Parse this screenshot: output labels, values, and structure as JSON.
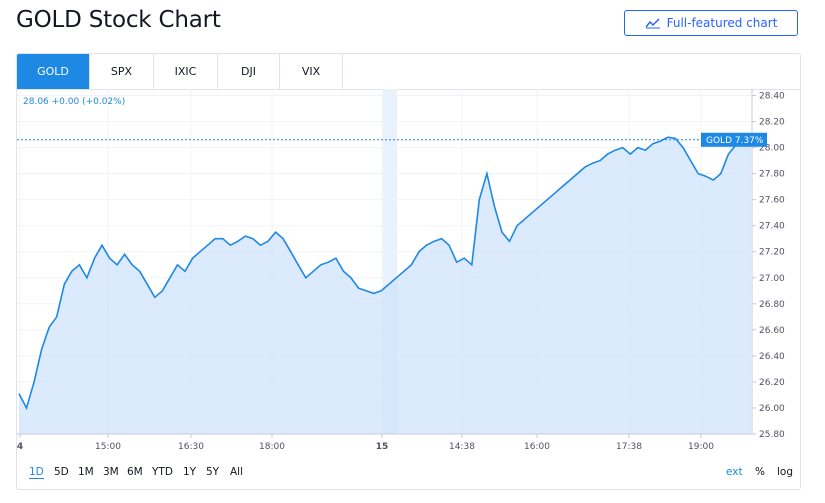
{
  "page": {
    "title": "GOLD Stock Chart"
  },
  "toolbar": {
    "full_chart_label": "Full-featured chart",
    "full_chart_icon": "chart-line-icon"
  },
  "tabs": [
    {
      "label": "GOLD",
      "active": true
    },
    {
      "label": "SPX",
      "active": false
    },
    {
      "label": "IXIC",
      "active": false
    },
    {
      "label": "DJI",
      "active": false
    },
    {
      "label": "VIX",
      "active": false
    }
  ],
  "legend": {
    "text": "28.06  +0.00 (+0.02%)"
  },
  "price_tag": {
    "label": "GOLD 7.37%",
    "value": "28.06"
  },
  "ranges": [
    {
      "label": "1D",
      "active": true
    },
    {
      "label": "5D",
      "active": false
    },
    {
      "label": "1M",
      "active": false
    },
    {
      "label": "3M",
      "active": false
    },
    {
      "label": "6M",
      "active": false
    },
    {
      "label": "YTD",
      "active": false
    },
    {
      "label": "1Y",
      "active": false
    },
    {
      "label": "5Y",
      "active": false
    },
    {
      "label": "All",
      "active": false
    }
  ],
  "options": {
    "ext": "ext",
    "percent": "%",
    "log": "log"
  },
  "colors": {
    "accent": "#1e88e5",
    "button": "#2962ff",
    "fill": "#cfe3fb"
  },
  "chart_data": {
    "type": "area",
    "title": "",
    "xlabel": "",
    "ylabel": "",
    "x_ticks": [
      "4",
      "15:00",
      "16:30",
      "18:00",
      "15",
      "14:38",
      "16:00",
      "17:38",
      "19:00"
    ],
    "y_ticks": [
      "28.40",
      "28.20",
      "28.00",
      "27.80",
      "27.60",
      "27.40",
      "27.20",
      "27.00",
      "26.80",
      "26.60",
      "26.40",
      "26.20",
      "26.00",
      "25.80"
    ],
    "ylim": [
      25.8,
      28.45
    ],
    "last_value": 28.06,
    "grid": true,
    "series": [
      {
        "values": [
          26.11,
          26.0,
          26.2,
          26.45,
          26.62,
          26.7,
          26.95,
          27.05,
          27.1,
          27.0,
          27.15,
          27.25,
          27.15,
          27.1,
          27.18,
          27.1,
          27.05,
          26.95,
          26.85,
          26.9,
          27.0,
          27.1,
          27.05,
          27.15,
          27.2,
          27.25,
          27.3,
          27.3,
          27.25,
          27.28,
          27.32,
          27.3,
          27.25,
          27.28,
          27.35,
          27.3,
          27.2,
          27.1,
          27.0,
          27.05,
          27.1,
          27.12,
          27.15,
          27.05,
          27.0,
          26.92,
          26.9,
          26.88,
          26.9,
          26.95,
          27.0,
          27.05,
          27.1,
          27.2,
          27.25,
          27.28,
          27.3,
          27.25,
          27.12,
          27.15,
          27.1,
          27.6,
          27.8,
          27.55,
          27.35,
          27.28,
          27.4,
          27.45,
          27.5,
          27.55,
          27.6,
          27.65,
          27.7,
          27.75,
          27.8,
          27.85,
          27.88,
          27.9,
          27.95,
          27.98,
          28.0,
          27.95,
          28.0,
          27.98,
          28.03,
          28.05,
          28.08,
          28.07,
          28.0,
          27.9,
          27.8,
          27.78,
          27.75,
          27.8,
          27.95,
          28.02,
          28.05,
          28.06
        ]
      }
    ]
  }
}
